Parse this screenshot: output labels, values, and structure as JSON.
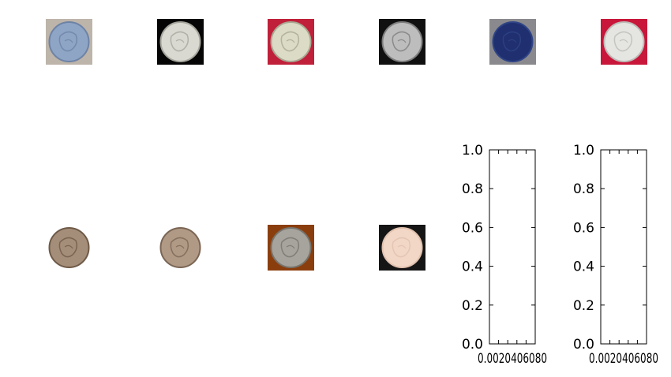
{
  "figure": {
    "coin_thumbnails": [
      {
        "id": "coin-1",
        "background": "#bdb4aa",
        "coin": "#8fa5c6",
        "rim": "#6d83a6"
      },
      {
        "id": "coin-2",
        "background": "#050505",
        "coin": "#d9d9d2",
        "rim": "#a5a59c"
      },
      {
        "id": "coin-3",
        "background": "#c0203a",
        "coin": "#dcdcc6",
        "rim": "#a8a892"
      },
      {
        "id": "coin-4",
        "background": "#101010",
        "coin": "#bdbdbd",
        "rim": "#7d7d7d"
      },
      {
        "id": "coin-5",
        "background": "#8a8a8e",
        "coin": "#1f2f6f",
        "rim": "#2f4486"
      },
      {
        "id": "coin-6",
        "background": "#c8173a",
        "coin": "#e5e5e2",
        "rim": "#bcbcb8"
      },
      {
        "id": "coin-7",
        "background": "#ffffff",
        "coin": "#a58e79",
        "rim": "#6e5a48"
      },
      {
        "id": "coin-8",
        "background": "#ffffff",
        "coin": "#b09a86",
        "rim": "#7a6554"
      },
      {
        "id": "coin-9",
        "background": "#8b3e0d",
        "coin": "#a7a49d",
        "rim": "#77746d"
      },
      {
        "id": "coin-10",
        "background": "#151515",
        "coin": "#f2d7c7",
        "rim": "#e1c1ae"
      }
    ]
  },
  "chart_data": [
    {
      "type": "scatter",
      "series": [],
      "ylim": [
        0,
        1
      ],
      "yticks": [
        "0.0",
        "0.2",
        "0.4",
        "0.6",
        "0.8",
        "1.0"
      ],
      "xticks_overlapping": "0.00.20.40.60.81.0",
      "xlabel_display": "0.0020406080",
      "grid": false
    },
    {
      "type": "scatter",
      "series": [],
      "ylim": [
        0,
        1
      ],
      "yticks": [
        "0.0",
        "0.2",
        "0.4",
        "0.6",
        "0.8",
        "1.0"
      ],
      "xticks_overlapping": "0.00.20.40.60.81.0",
      "xlabel_display": "0.0020406080",
      "grid": false
    }
  ]
}
